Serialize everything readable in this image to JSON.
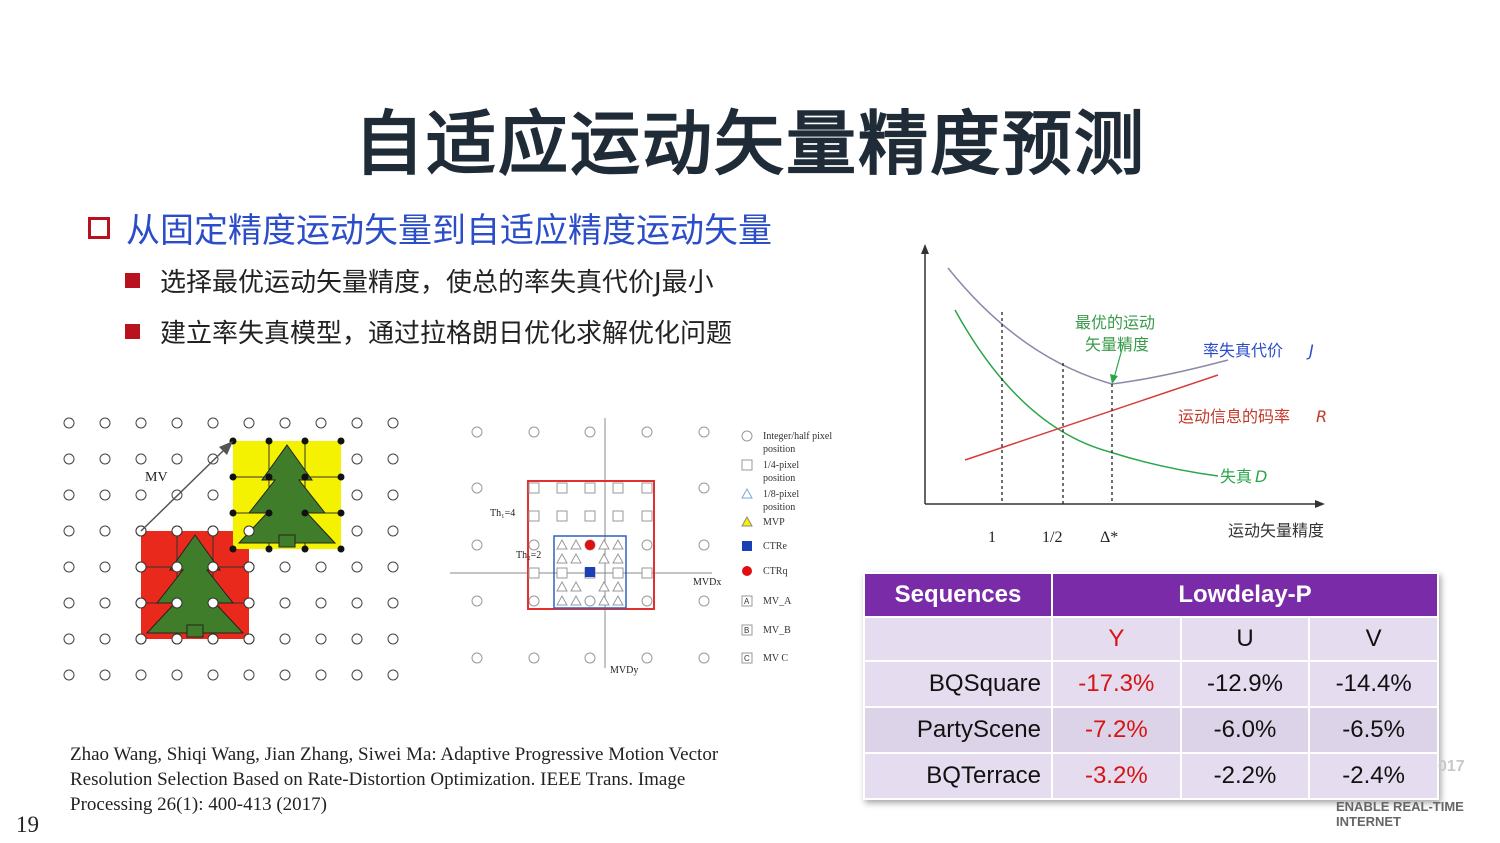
{
  "title": "自适应运动矢量精度预测",
  "bullet_main": "从固定精度运动矢量到自适应精度运动矢量",
  "bullets": [
    "选择最优运动矢量精度，使总的率失真代价J最小",
    "建立率失真模型，通过拉格朗日优化求解优化问题"
  ],
  "reference": [
    "Zhao Wang, Shiqi Wang, Jian Zhang, Siwei Ma: Adaptive Progressive Motion Vector",
    "Resolution Selection Based on Rate-Distortion Optimization. IEEE Trans. Image",
    "Processing 26(1): 400-413 (2017)"
  ],
  "page_number": "19",
  "footer": {
    "year_fragment": "017",
    "brand_line1": "ENABLE  REAL-TIME",
    "brand_line2": "INTERNET"
  },
  "fig_left": {
    "mv_label": "MV"
  },
  "fig_mid": {
    "th1": "Th₁=4",
    "th2": "Th₂=2",
    "mvdx": "MVDx",
    "mvdy": "MVDy",
    "legend": [
      {
        "icon": "circle",
        "label": "Integer/half pixel position"
      },
      {
        "icon": "square",
        "label": "1/4-pixel position"
      },
      {
        "icon": "triangle",
        "label": "1/8-pixel position"
      },
      {
        "icon": "yellow-triangle",
        "label": "MVP"
      },
      {
        "icon": "blue-square",
        "label": "CTRe"
      },
      {
        "icon": "red-circle",
        "label": "CTRq"
      },
      {
        "icon": "A",
        "label": "MV_A"
      },
      {
        "icon": "B",
        "label": "MV_B"
      },
      {
        "icon": "C",
        "label": "MV C"
      }
    ]
  },
  "fig_right": {
    "optimal_label_1": "最优的运动",
    "optimal_label_2": "矢量精度",
    "j_label": "率失真代价",
    "j_symbol": "J",
    "r_label": "运动信息的码率",
    "r_symbol": "R",
    "d_label": "失真",
    "d_symbol": "D",
    "x_ticks": [
      "1",
      "1/2",
      "Δ*"
    ],
    "x_axis_label": "运动矢量精度"
  },
  "table": {
    "header": [
      "Sequences",
      "Lowdelay-P"
    ],
    "subheader": [
      "Y",
      "U",
      "V"
    ],
    "rows": [
      {
        "name": "BQSquare",
        "y": "-17.3%",
        "u": "-12.9%",
        "v": "-14.4%"
      },
      {
        "name": "PartyScene",
        "y": "-7.2%",
        "u": "-6.0%",
        "v": "-6.5%"
      },
      {
        "name": "BQTerrace",
        "y": "-3.2%",
        "u": "-2.2%",
        "v": "-2.4%"
      }
    ]
  },
  "colors": {
    "title": "#1f2b36",
    "bullet_main": "#2b4dc9",
    "bullet_marker": "#b7121e",
    "table_header": "#7a2ca8",
    "negative_y": "#d51414"
  }
}
